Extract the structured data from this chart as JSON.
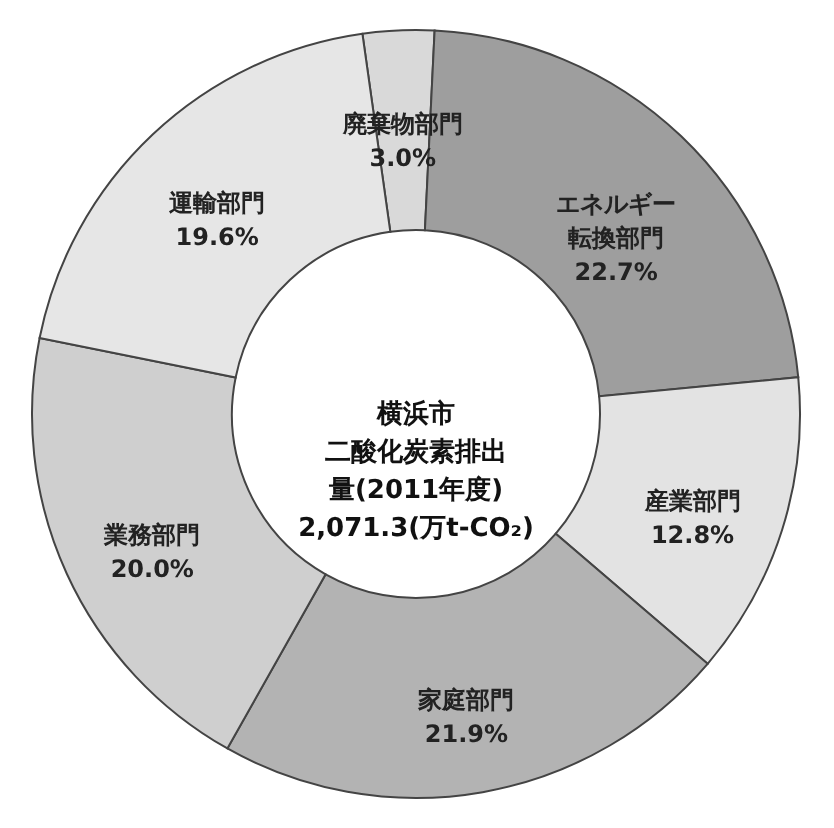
{
  "chart_data": {
    "type": "donut",
    "title": "横浜市二酸化炭素排出量(2011年度)2,071.3(万t-CO₂)",
    "categories": [
      "廃棄物部門",
      "エネルギー転換部門",
      "産業部門",
      "家庭部門",
      "業務部門",
      "運輸部門"
    ],
    "values": [
      3.0,
      22.7,
      12.8,
      21.9,
      20.0,
      19.6
    ],
    "value_labels": [
      "3.0%",
      "22.7%",
      "12.8%",
      "21.9%",
      "20.0%",
      "19.6%"
    ],
    "colors": [
      "#d9d9d9",
      "#9e9e9e",
      "#e3e3e3",
      "#b3b3b3",
      "#cfcfcf",
      "#e6e6e6"
    ]
  }
}
